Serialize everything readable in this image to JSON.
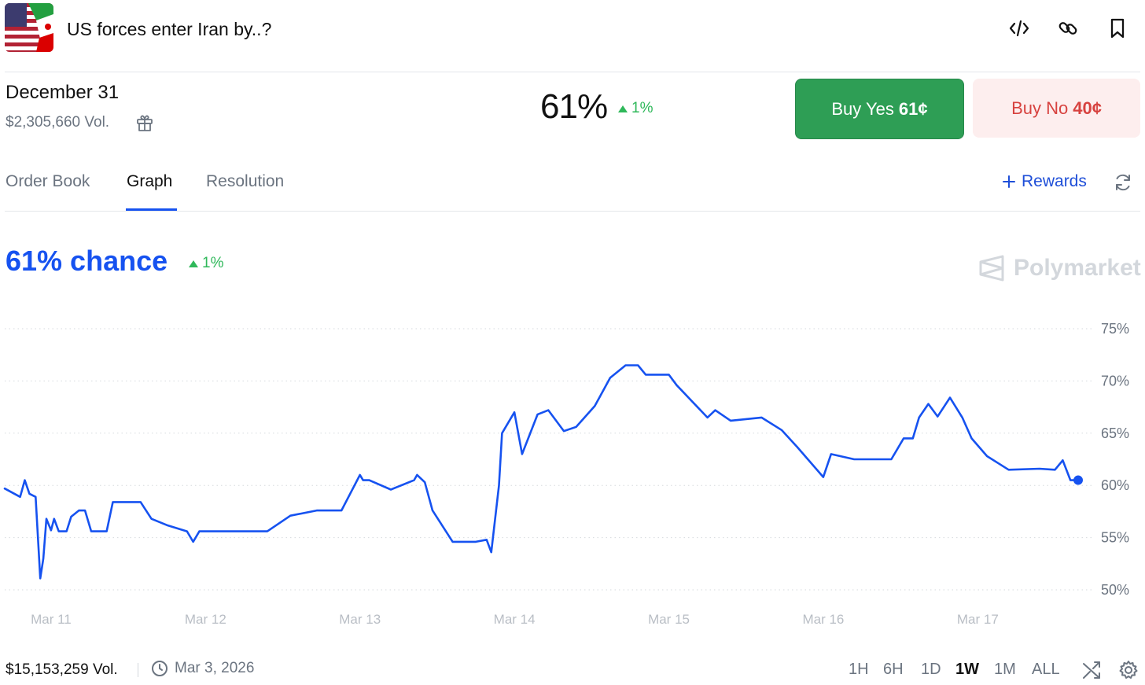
{
  "header": {
    "title": "US forces enter Iran by..?",
    "icons": [
      "embed-code-icon",
      "link-icon",
      "bookmark-icon"
    ]
  },
  "market": {
    "date": "December 31",
    "volume": "$2,305,660 Vol.",
    "probability": "61%",
    "change": "1%",
    "buy_yes": {
      "label": "Buy Yes",
      "price": "61¢"
    },
    "buy_no": {
      "label": "Buy No",
      "price": "40¢"
    }
  },
  "tabs": [
    {
      "label": "Order Book",
      "active": false
    },
    {
      "label": "Graph",
      "active": true
    },
    {
      "label": "Resolution",
      "active": false
    }
  ],
  "rewards_label": "Rewards",
  "graph": {
    "headline": "61% chance",
    "change": "1%",
    "watermark": "Polymarket"
  },
  "chart_data": {
    "type": "line",
    "y_ticks": [
      "75%",
      "70%",
      "65%",
      "60%",
      "55%",
      "50%"
    ],
    "x_ticks": [
      "Mar 11",
      "Mar 12",
      "Mar 13",
      "Mar 14",
      "Mar 15",
      "Mar 16",
      "Mar 17"
    ],
    "ylim": [
      49,
      76
    ],
    "xlim": [
      10.7,
      17.7
    ],
    "grid": "horizontal dotted",
    "line_color": "#1652f0",
    "series": [
      {
        "x": [
          10.7,
          10.8,
          10.83,
          10.86,
          10.9,
          10.93,
          10.95,
          10.97,
          11.0,
          11.02,
          11.05,
          11.1,
          11.13,
          11.18,
          11.22,
          11.26,
          11.31,
          11.36,
          11.4,
          11.5,
          11.55,
          11.58,
          11.65,
          11.75,
          11.88,
          11.92,
          11.96,
          12.0,
          12.06,
          12.14,
          12.25,
          12.4,
          12.55,
          12.72,
          12.8,
          12.88,
          13.0,
          13.02,
          13.06,
          13.2,
          13.35,
          13.37,
          13.42,
          13.47,
          13.6,
          13.75,
          13.82,
          13.85,
          13.9,
          13.92,
          14.0,
          14.05,
          14.15,
          14.22,
          14.32,
          14.4,
          14.52,
          14.62,
          14.72,
          14.8,
          14.85,
          14.92,
          15.0,
          15.05,
          15.25,
          15.3,
          15.4,
          15.6,
          15.73,
          15.83,
          16.0,
          16.05,
          16.2,
          16.3,
          16.44,
          16.52,
          16.58,
          16.62,
          16.68,
          16.74,
          16.82,
          16.9,
          16.96,
          17.06,
          17.2,
          17.4,
          17.5,
          17.55,
          17.6,
          17.65
        ],
        "y": [
          59.7,
          58.9,
          60.5,
          59.2,
          58.9,
          51.1,
          53.0,
          56.8,
          55.7,
          56.8,
          55.6,
          55.6,
          57.0,
          57.6,
          57.6,
          55.6,
          55.6,
          55.6,
          58.4,
          58.4,
          58.4,
          58.4,
          56.8,
          56.2,
          55.6,
          54.6,
          55.6,
          55.6,
          55.6,
          55.6,
          55.6,
          55.6,
          57.1,
          57.6,
          57.6,
          57.6,
          61.0,
          60.5,
          60.5,
          59.6,
          60.5,
          61.0,
          60.3,
          57.6,
          54.6,
          54.6,
          54.8,
          53.6,
          60.0,
          65.0,
          67.0,
          63.0,
          66.8,
          67.2,
          65.2,
          65.6,
          67.6,
          70.3,
          71.5,
          71.5,
          70.6,
          70.6,
          70.6,
          69.6,
          66.5,
          67.2,
          66.2,
          66.5,
          65.3,
          63.7,
          60.8,
          63.0,
          62.5,
          62.5,
          62.5,
          64.5,
          64.5,
          66.5,
          67.8,
          66.6,
          68.4,
          66.5,
          64.5,
          62.8,
          61.5,
          61.6,
          61.5,
          62.4,
          60.5,
          60.5
        ]
      }
    ]
  },
  "footer": {
    "volume": "$15,153,259 Vol.",
    "date": "Mar 3, 2026",
    "ranges": [
      {
        "label": "1H",
        "active": false
      },
      {
        "label": "6H",
        "active": false
      },
      {
        "label": "1D",
        "active": false
      },
      {
        "label": "1W",
        "active": true
      },
      {
        "label": "1M",
        "active": false
      },
      {
        "label": "ALL",
        "active": false
      }
    ]
  }
}
